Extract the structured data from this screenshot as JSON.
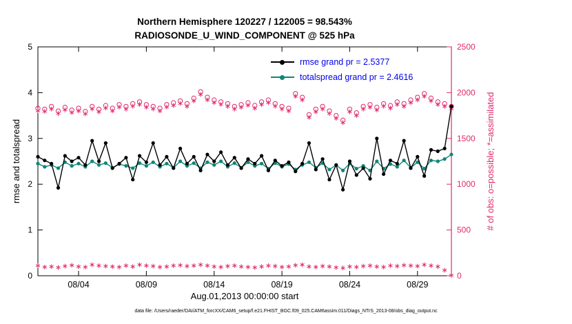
{
  "titles": {
    "line1": "Northern Hemisphere 120227 / 122005 = 98.543%",
    "line2": "RADIOSONDE_U_WIND_COMPONENT @ 525 hPa"
  },
  "axes": {
    "xlabel": "Aug.01,2013 00:00:00 start",
    "ylabel_left": "rmse and totalspread",
    "ylabel_right": "# of obs: o=possible; *=assimilated"
  },
  "legend": {
    "rmse": "rmse grand pr = 2.5377",
    "totalspread": "totalspread grand pr = 2.4616"
  },
  "caption": "data file: /Users/raeder/DAI/ATM_forcXX/CAM6_setup/f.e21.FHIST_BGC.f09_025.CAM6assim.011/Diags_NTrS_2013-08/obs_diag_output.nc",
  "colors": {
    "pink": "#e0296d",
    "teal": "#0e8577",
    "black": "#000000",
    "legend_text": "#0000ee"
  },
  "chart_data": {
    "type": "line",
    "title": "Northern Hemisphere 120227 / 122005 = 98.543% | RADIOSONDE_U_WIND_COMPONENT @ 525 hPa",
    "x_start": "Aug.01,2013 00:00:00",
    "x_points_per_day": 2,
    "x_tick_labels": [
      "08/04",
      "08/09",
      "08/14",
      "08/19",
      "08/24",
      "08/29"
    ],
    "x_tick_indices": [
      6,
      16,
      26,
      36,
      46,
      56
    ],
    "left_axis": {
      "min": 0,
      "max": 5,
      "ticks": [
        0,
        1,
        2,
        3,
        4,
        5
      ],
      "label": "rmse and totalspread"
    },
    "right_axis": {
      "min": 0,
      "max": 2500,
      "ticks": [
        0,
        500,
        1000,
        1500,
        2000,
        2500
      ],
      "label": "# of obs: o=possible; *=assimilated"
    },
    "grand_stats": {
      "rmse_grand_prior": 2.5377,
      "totalspread_grand_prior": 2.4616,
      "obs_possible_total": 122005,
      "obs_assimilated_total": 120227,
      "percent_assimilated": 98.543
    },
    "series": [
      {
        "name": "obs-possible",
        "axis": "right",
        "marker": "circle-open",
        "line": false,
        "color": "#e0296d",
        "values": [
          1830,
          1820,
          1850,
          1800,
          1840,
          1810,
          1830,
          1795,
          1850,
          1820,
          1860,
          1830,
          1870,
          1850,
          1880,
          1900,
          1870,
          1850,
          1830,
          1870,
          1890,
          1910,
          1880,
          1940,
          2010,
          1950,
          1920,
          1900,
          1880,
          1850,
          1870,
          1890,
          1860,
          1900,
          1920,
          1880,
          1850,
          1830,
          1990,
          1950,
          1760,
          1820,
          1850,
          1800,
          1750,
          1700,
          1820,
          1780,
          1850,
          1870,
          1840,
          1880,
          1860,
          1900,
          1880,
          1920,
          1950,
          1990,
          1940,
          1900,
          1880,
          1850
        ]
      },
      {
        "name": "obs-assimilated",
        "axis": "right",
        "marker": "asterisk",
        "line": false,
        "color": "#e0296d",
        "values": [
          1802,
          1795,
          1820,
          1772,
          1812,
          1783,
          1800,
          1768,
          1822,
          1790,
          1832,
          1800,
          1842,
          1820,
          1852,
          1870,
          1840,
          1822,
          1800,
          1842,
          1860,
          1882,
          1850,
          1910,
          1980,
          1920,
          1890,
          1872,
          1850,
          1820,
          1840,
          1862,
          1830,
          1870,
          1890,
          1852,
          1820,
          1800,
          1960,
          1920,
          1730,
          1790,
          1820,
          1772,
          1720,
          1672,
          1790,
          1750,
          1820,
          1840,
          1810,
          1852,
          1830,
          1870,
          1850,
          1890,
          1920,
          1960,
          1910,
          1870,
          1850,
          1822
        ]
      },
      {
        "name": "obs-lower-band",
        "axis": "right",
        "marker": "asterisk",
        "line": false,
        "color": "#e0296d",
        "values": [
          110,
          95,
          100,
          90,
          105,
          115,
          100,
          95,
          120,
          110,
          105,
          100,
          95,
          110,
          100,
          120,
          110,
          105,
          95,
          100,
          110,
          115,
          105,
          110,
          120,
          110,
          100,
          95,
          105,
          110,
          100,
          95,
          90,
          100,
          110,
          105,
          95,
          100,
          115,
          120,
          100,
          95,
          105,
          100,
          90,
          85,
          100,
          95,
          105,
          110,
          100,
          95,
          110,
          105,
          115,
          110,
          105,
          120,
          110,
          100,
          60,
          5
        ]
      },
      {
        "name": "totalspread",
        "axis": "left",
        "marker": "circle-filled",
        "line": true,
        "color": "#0e8577",
        "values": [
          2.45,
          2.38,
          2.42,
          2.35,
          2.48,
          2.4,
          2.45,
          2.38,
          2.5,
          2.42,
          2.46,
          2.36,
          2.44,
          2.4,
          2.35,
          2.46,
          2.4,
          2.48,
          2.38,
          2.45,
          2.36,
          2.5,
          2.4,
          2.46,
          2.35,
          2.48,
          2.42,
          2.5,
          2.38,
          2.46,
          2.36,
          2.48,
          2.4,
          2.45,
          2.34,
          2.46,
          2.38,
          2.44,
          2.32,
          2.42,
          2.48,
          2.36,
          2.46,
          2.32,
          2.42,
          2.3,
          2.45,
          2.34,
          2.4,
          2.3,
          2.5,
          2.34,
          2.44,
          2.38,
          2.52,
          2.36,
          2.48,
          2.34,
          2.52,
          2.5,
          2.55,
          2.65
        ]
      },
      {
        "name": "rmse",
        "axis": "left",
        "marker": "circle-filled",
        "line": true,
        "color": "#000000",
        "values": [
          2.6,
          2.52,
          2.45,
          1.92,
          2.62,
          2.5,
          2.58,
          2.42,
          2.95,
          2.5,
          2.9,
          2.35,
          2.45,
          2.58,
          2.1,
          2.62,
          2.48,
          2.9,
          2.42,
          2.6,
          2.35,
          2.78,
          2.45,
          2.6,
          2.3,
          2.65,
          2.5,
          2.7,
          2.42,
          2.58,
          2.35,
          2.55,
          2.45,
          2.62,
          2.3,
          2.52,
          2.4,
          2.48,
          2.28,
          2.45,
          2.9,
          2.32,
          2.55,
          2.1,
          2.42,
          1.88,
          2.5,
          2.2,
          2.35,
          2.12,
          3.0,
          2.22,
          2.52,
          2.45,
          2.95,
          2.35,
          2.6,
          2.18,
          2.75,
          2.72,
          2.78,
          3.7
        ]
      }
    ]
  }
}
